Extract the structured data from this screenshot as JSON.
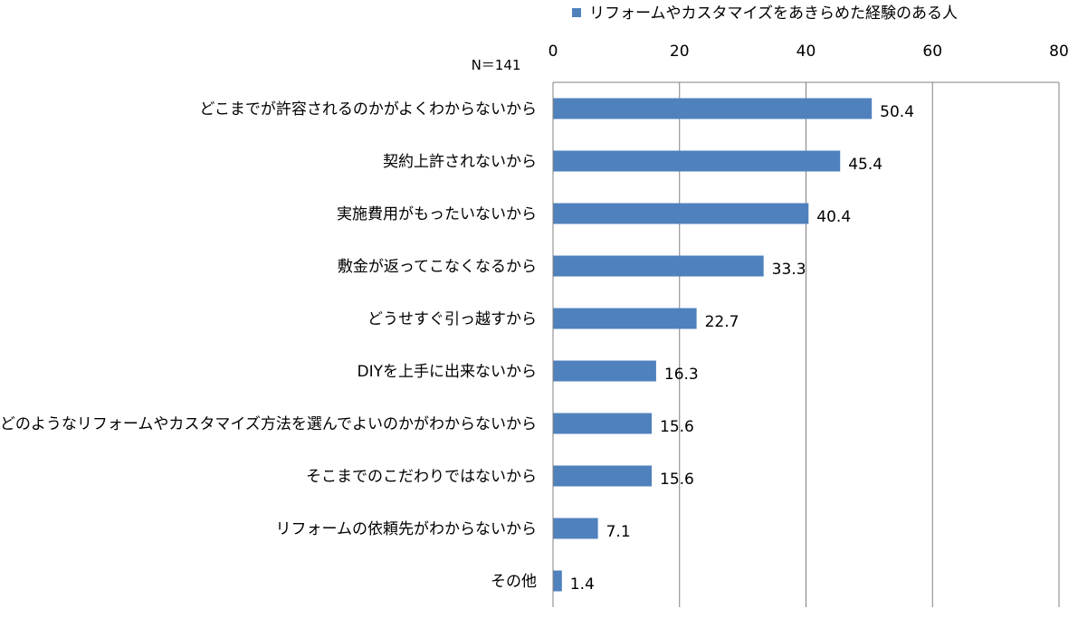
{
  "sample_note": "N＝141",
  "legend": {
    "label": "リフォームやカスタマイズをあきらめた経験のある人",
    "color": "#4F81BD"
  },
  "chart_data": {
    "type": "bar",
    "orientation": "horizontal",
    "title": "",
    "xlabel": "",
    "ylabel": "",
    "xlim": [
      0,
      80
    ],
    "ticks": [
      0,
      20,
      40,
      60,
      80
    ],
    "grid": true,
    "legend_position": "top",
    "categories": [
      "どこまでが許容されるのかがよくわからないから",
      "契約上許されないから",
      "実施費用がもったいないから",
      "敷金が返ってこなくなるから",
      "どうせすぐ引っ越すから",
      "DIYを上手に出来ないから",
      "どのようなリフォームやカスタマイズ方法を選んでよいのかがわからないから",
      "そこまでのこだわりではないから",
      "リフォームの依頼先がわからないから",
      "その他"
    ],
    "series": [
      {
        "name": "リフォームやカスタマイズをあきらめた経験のある人",
        "color": "#4F81BD",
        "values": [
          50.4,
          45.4,
          40.4,
          33.3,
          22.7,
          16.3,
          15.6,
          15.6,
          7.1,
          1.4
        ],
        "value_labels": [
          "50.4",
          "45.4",
          "40.4",
          "33.3",
          "22.7",
          "16.3",
          "15.6",
          "15.6",
          "7.1",
          "1.4"
        ]
      }
    ]
  }
}
